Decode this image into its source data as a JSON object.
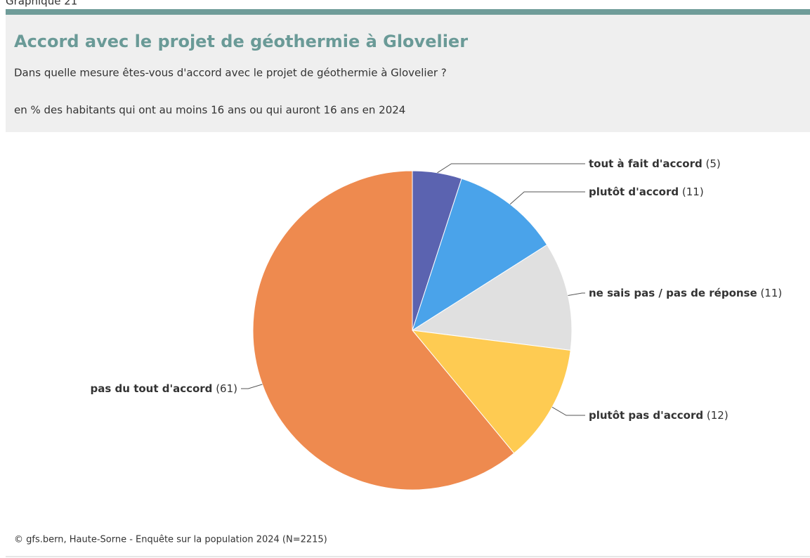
{
  "header": {
    "label": "Graphique 21"
  },
  "chart_data": {
    "type": "pie",
    "title": "Accord avec le projet de géothermie à Glovelier",
    "subtitle": "Dans quelle mesure êtes-vous d'accord avec le projet de géothermie à Glovelier ?",
    "note": "en % des habitants qui ont au moins 16 ans ou qui auront 16 ans en 2024",
    "categories": [
      "tout à fait d'accord",
      "plutôt d'accord",
      "ne sais pas / pas de réponse",
      "plutôt pas d'accord",
      "pas du tout d'accord"
    ],
    "values": [
      5,
      11,
      11,
      12,
      61
    ],
    "value_labels": [
      "(5)",
      "(11)",
      "(11)",
      "(12)",
      "(61)"
    ],
    "colors": [
      "#5b63b0",
      "#4aa3ea",
      "#e0e0e0",
      "#fecb52",
      "#ee8a4f"
    ]
  },
  "footer": {
    "source": "© gfs.bern, Haute-Sorne - Enquête sur la population 2024 (N=2215)"
  }
}
